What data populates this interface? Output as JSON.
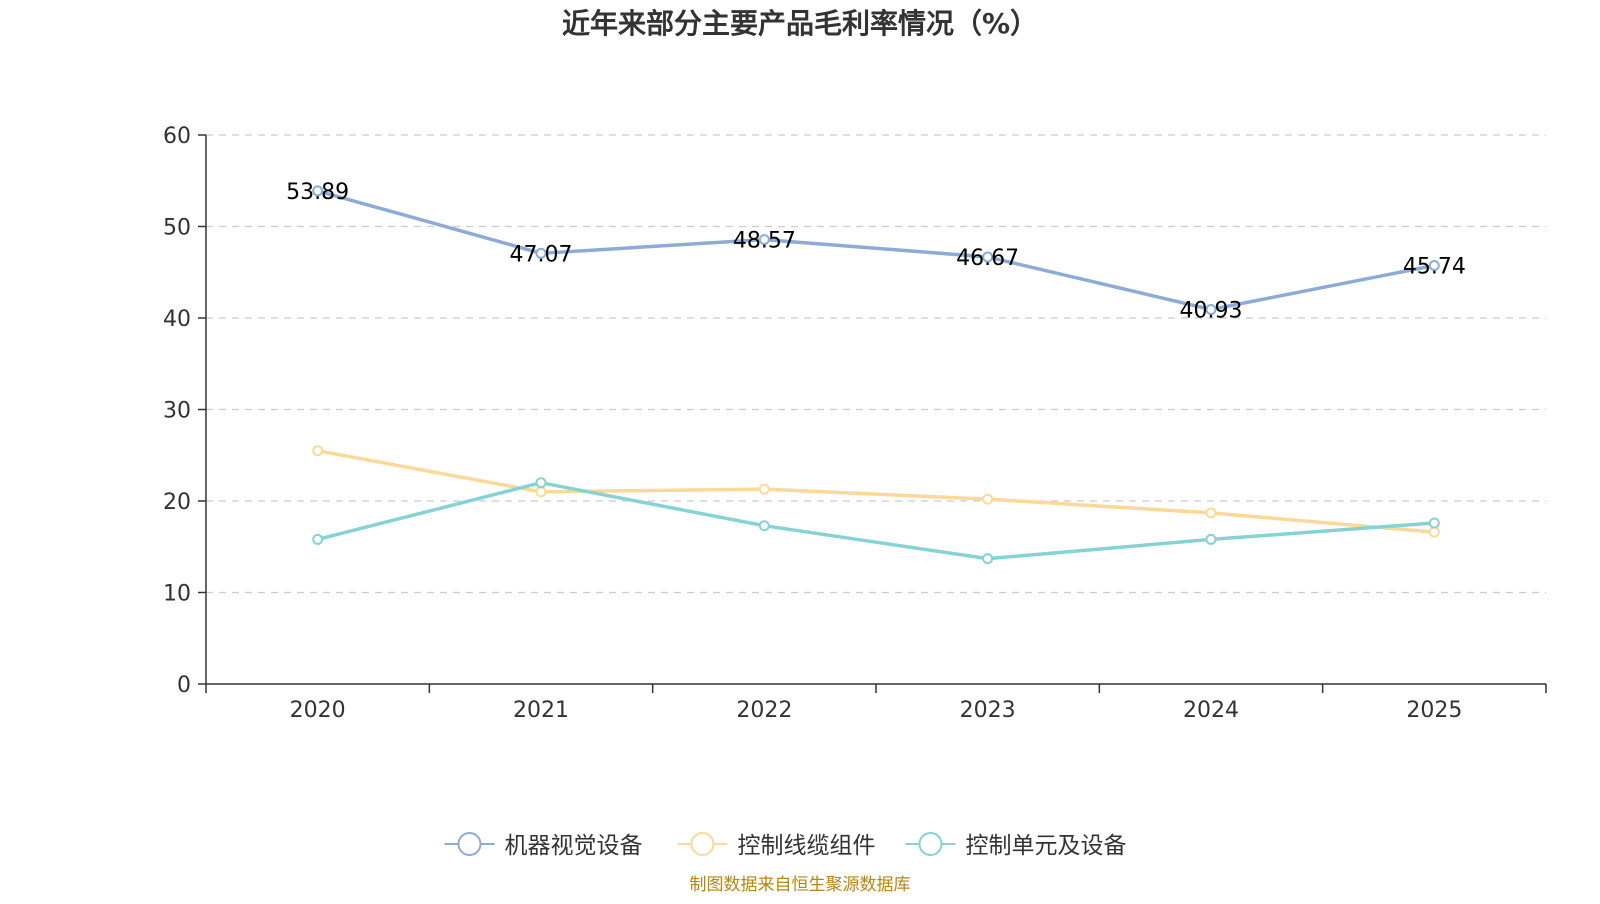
{
  "colors": {
    "series": [
      "#8eabd7",
      "#fcd999",
      "#86d3d5"
    ],
    "axis": "#333333",
    "grid": "#cccccc",
    "source": "#b8860b"
  },
  "chart_data": {
    "type": "line",
    "title": "近年来部分主要产品毛利率情况（%）",
    "categories": [
      "2020",
      "2021",
      "2022",
      "2023",
      "2024",
      "2025"
    ],
    "ylim": [
      0,
      60
    ],
    "yticks": [
      "0",
      "10",
      "20",
      "30",
      "40",
      "50",
      "60"
    ],
    "grid": true,
    "legend_position": "bottom",
    "series": [
      {
        "name": "机器视觉设备",
        "values": [
          53.89,
          47.07,
          48.57,
          46.67,
          40.93,
          45.74
        ],
        "show_labels": true,
        "labels": [
          "53.89",
          "47.07",
          "48.57",
          "46.67",
          "40.93",
          "45.74"
        ]
      },
      {
        "name": "控制线缆组件",
        "values": [
          25.5,
          21.0,
          21.3,
          20.2,
          18.7,
          16.6
        ],
        "show_labels": false
      },
      {
        "name": "控制单元及设备",
        "values": [
          15.8,
          22.0,
          17.3,
          13.7,
          15.8,
          17.6
        ],
        "show_labels": false
      }
    ]
  },
  "footer": {
    "source": "制图数据来自恒生聚源数据库"
  }
}
